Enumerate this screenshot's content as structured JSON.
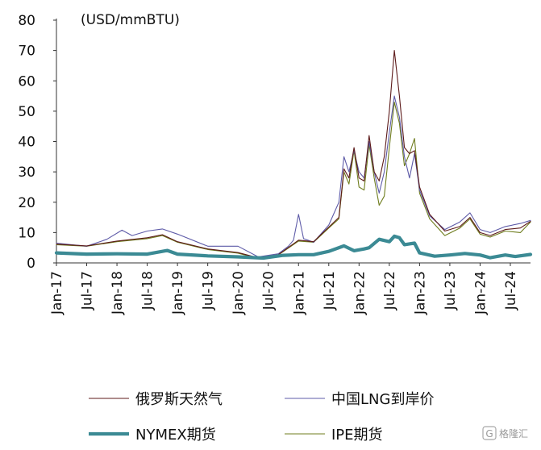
{
  "chart_data": {
    "type": "line",
    "unit_label": "(USD/mmBTU)",
    "ylim": [
      0,
      80
    ],
    "yticks": [
      0,
      10,
      20,
      30,
      40,
      50,
      60,
      70,
      80
    ],
    "x_start": "Jan-17",
    "x_end": "Nov-24",
    "xticks": [
      "Jan-17",
      "Jul-17",
      "Jan-18",
      "Jul-18",
      "Jan-19",
      "Jul-19",
      "Jan-20",
      "Jul-20",
      "Jan-21",
      "Jul-21",
      "Jan-22",
      "Jul-22",
      "Jan-23",
      "Jul-23",
      "Jan-24",
      "Jul-24"
    ],
    "series": [
      {
        "name": "俄罗斯天然气",
        "color": "#5c1a1a",
        "width": 1.1,
        "x": [
          "2017-01",
          "2017-07",
          "2018-01",
          "2018-07",
          "2018-10",
          "2019-01",
          "2019-07",
          "2020-01",
          "2020-05",
          "2020-09",
          "2021-01",
          "2021-04",
          "2021-07",
          "2021-09",
          "2021-10",
          "2021-11",
          "2021-12",
          "2022-01",
          "2022-02",
          "2022-03",
          "2022-04",
          "2022-05",
          "2022-06",
          "2022-07",
          "2022-08",
          "2022-09",
          "2022-10",
          "2022-11",
          "2022-12",
          "2023-01",
          "2023-03",
          "2023-06",
          "2023-09",
          "2023-11",
          "2024-01",
          "2024-03",
          "2024-06",
          "2024-09",
          "2024-11"
        ],
        "values": [
          6.2,
          5.6,
          7.2,
          8.3,
          9.3,
          7.0,
          4.6,
          3.4,
          1.7,
          2.7,
          7.5,
          7.0,
          11.8,
          15.0,
          31.0,
          28.0,
          38.0,
          28.0,
          27.0,
          42.0,
          30.0,
          27.0,
          35.0,
          50.0,
          70.0,
          55.0,
          38.0,
          36.0,
          37.0,
          25.0,
          16.0,
          10.5,
          12.0,
          15.0,
          10.0,
          9.0,
          11.0,
          11.5,
          13.7
        ]
      },
      {
        "name": "中国LNG到岸价",
        "color": "#5e5ba8",
        "width": 1.1,
        "x": [
          "2017-01",
          "2017-07",
          "2017-11",
          "2018-02",
          "2018-04",
          "2018-07",
          "2018-10",
          "2019-01",
          "2019-07",
          "2020-01",
          "2020-05",
          "2020-09",
          "2020-11",
          "2020-12",
          "2021-01",
          "2021-02",
          "2021-04",
          "2021-07",
          "2021-09",
          "2021-10",
          "2021-11",
          "2021-12",
          "2022-01",
          "2022-02",
          "2022-03",
          "2022-04",
          "2022-05",
          "2022-06",
          "2022-07",
          "2022-08",
          "2022-09",
          "2022-10",
          "2022-11",
          "2022-12",
          "2023-01",
          "2023-03",
          "2023-06",
          "2023-09",
          "2023-11",
          "2024-01",
          "2024-03",
          "2024-06",
          "2024-09",
          "2024-11"
        ],
        "values": [
          6.5,
          5.5,
          7.8,
          10.8,
          9.0,
          10.5,
          11.2,
          9.5,
          5.5,
          5.5,
          2.0,
          3.0,
          5.5,
          7.5,
          16.0,
          8.0,
          6.8,
          12.5,
          20.0,
          35.0,
          30.0,
          37.0,
          30.0,
          28.0,
          40.0,
          30.0,
          23.0,
          30.0,
          43.0,
          55.0,
          48.0,
          35.0,
          28.0,
          36.0,
          24.0,
          15.5,
          11.0,
          13.5,
          16.5,
          11.0,
          10.0,
          12.0,
          13.0,
          14.0
        ]
      },
      {
        "name": "NYMEX期货",
        "color": "#3b8a94",
        "width": 4.2,
        "x": [
          "2017-01",
          "2017-07",
          "2018-01",
          "2018-07",
          "2018-11",
          "2019-01",
          "2019-07",
          "2020-01",
          "2020-06",
          "2020-10",
          "2021-01",
          "2021-04",
          "2021-07",
          "2021-10",
          "2021-12",
          "2022-02",
          "2022-03",
          "2022-05",
          "2022-06",
          "2022-07",
          "2022-08",
          "2022-09",
          "2022-10",
          "2022-12",
          "2023-01",
          "2023-04",
          "2023-07",
          "2023-10",
          "2024-01",
          "2024-03",
          "2024-06",
          "2024-08",
          "2024-11"
        ],
        "values": [
          3.3,
          2.9,
          3.0,
          2.9,
          4.1,
          2.9,
          2.3,
          2.0,
          1.6,
          2.5,
          2.7,
          2.7,
          3.8,
          5.6,
          4.0,
          4.6,
          5.0,
          7.8,
          7.4,
          7.0,
          8.8,
          8.3,
          6.0,
          6.5,
          3.3,
          2.2,
          2.6,
          3.1,
          2.6,
          1.7,
          2.6,
          2.1,
          2.8
        ]
      },
      {
        "name": "IPE期货",
        "color": "#6f7d1e",
        "width": 1.1,
        "x": [
          "2017-01",
          "2017-07",
          "2018-01",
          "2018-07",
          "2018-10",
          "2019-01",
          "2019-07",
          "2020-01",
          "2020-05",
          "2020-09",
          "2021-01",
          "2021-04",
          "2021-07",
          "2021-09",
          "2021-10",
          "2021-11",
          "2021-12",
          "2022-01",
          "2022-02",
          "2022-03",
          "2022-04",
          "2022-05",
          "2022-06",
          "2022-07",
          "2022-08",
          "2022-09",
          "2022-10",
          "2022-11",
          "2022-12",
          "2023-01",
          "2023-03",
          "2023-06",
          "2023-09",
          "2023-11",
          "2024-01",
          "2024-03",
          "2024-06",
          "2024-09",
          "2024-11"
        ],
        "values": [
          6.0,
          5.5,
          7.0,
          8.0,
          9.0,
          6.8,
          4.4,
          3.2,
          1.5,
          2.6,
          7.2,
          6.8,
          11.5,
          14.5,
          30.0,
          26.0,
          37.0,
          25.0,
          24.0,
          39.0,
          28.0,
          19.0,
          22.0,
          38.0,
          53.0,
          46.0,
          32.0,
          36.0,
          41.0,
          23.0,
          14.5,
          9.0,
          11.5,
          14.5,
          9.5,
          8.5,
          10.5,
          10.0,
          13.5
        ]
      }
    ],
    "legend_position": "bottom"
  },
  "watermark": {
    "logo_text": "G",
    "text": "格隆汇"
  }
}
